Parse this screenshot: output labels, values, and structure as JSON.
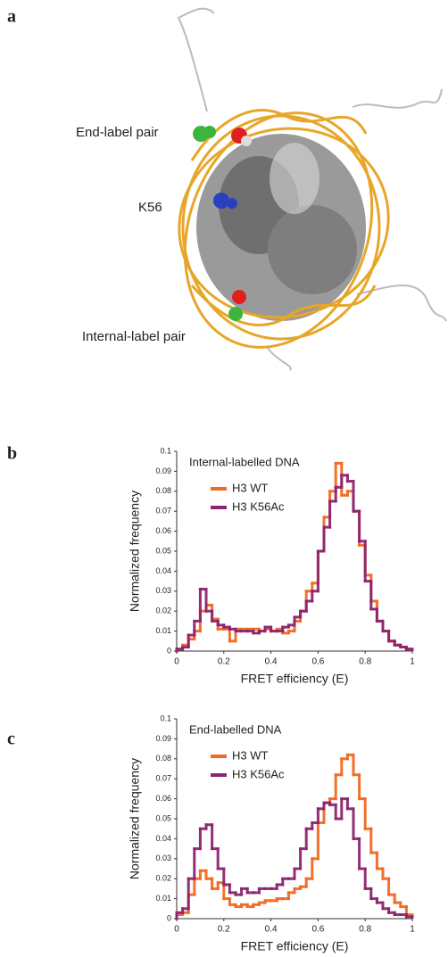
{
  "figure": {
    "panel_labels": [
      "a",
      "b",
      "c"
    ],
    "structure_labels": [
      "End-label pair",
      "K56",
      "Internal-label pair"
    ]
  },
  "chart_data": [
    {
      "type": "histogram",
      "title": "Internal-labelled DNA",
      "x_label": "FRET efficiency (E)",
      "y_label": "Normalized frequency",
      "bins": [
        0,
        0.025,
        0.05,
        0.075,
        0.1,
        0.125,
        0.15,
        0.175,
        0.2,
        0.225,
        0.25,
        0.275,
        0.3,
        0.325,
        0.35,
        0.375,
        0.4,
        0.425,
        0.45,
        0.475,
        0.5,
        0.525,
        0.55,
        0.575,
        0.6,
        0.625,
        0.65,
        0.675,
        0.7,
        0.725,
        0.75,
        0.775,
        0.8,
        0.825,
        0.85,
        0.875,
        0.9,
        0.925,
        0.95,
        0.975,
        1
      ],
      "series": [
        {
          "name": "H3 WT",
          "color": "#f26a21",
          "values": [
            0.001,
            0.003,
            0.006,
            0.01,
            0.02,
            0.023,
            0.016,
            0.011,
            0.011,
            0.005,
            0.011,
            0.011,
            0.011,
            0.011,
            0.01,
            0.011,
            0.01,
            0.011,
            0.009,
            0.01,
            0.015,
            0.02,
            0.03,
            0.034,
            0.05,
            0.067,
            0.08,
            0.094,
            0.078,
            0.08,
            0.07,
            0.053,
            0.038,
            0.025,
            0.015,
            0.01,
            0.005,
            0.003,
            0.002,
            0.001
          ]
        },
        {
          "name": "H3 K56Ac",
          "color": "#8e2470",
          "values": [
            0.001,
            0.002,
            0.008,
            0.015,
            0.031,
            0.02,
            0.015,
            0.013,
            0.012,
            0.011,
            0.01,
            0.01,
            0.01,
            0.009,
            0.01,
            0.012,
            0.01,
            0.01,
            0.012,
            0.013,
            0.017,
            0.02,
            0.025,
            0.03,
            0.05,
            0.062,
            0.075,
            0.082,
            0.088,
            0.085,
            0.07,
            0.055,
            0.035,
            0.021,
            0.015,
            0.01,
            0.005,
            0.003,
            0.002,
            0.001
          ]
        }
      ],
      "xlim": [
        0,
        1
      ],
      "xticks": [
        0,
        0.2,
        0.4,
        0.6,
        0.8,
        1
      ],
      "ylim": [
        0,
        0.1
      ],
      "yticks": [
        0,
        0.01,
        0.02,
        0.03,
        0.04,
        0.05,
        0.06,
        0.07,
        0.08,
        0.09,
        0.1
      ]
    },
    {
      "type": "histogram",
      "title": "End-labelled DNA",
      "x_label": "FRET efficiency (E)",
      "y_label": "Normalized frequency",
      "bins": [
        0,
        0.025,
        0.05,
        0.075,
        0.1,
        0.125,
        0.15,
        0.175,
        0.2,
        0.225,
        0.25,
        0.275,
        0.3,
        0.325,
        0.35,
        0.375,
        0.4,
        0.425,
        0.45,
        0.475,
        0.5,
        0.525,
        0.55,
        0.575,
        0.6,
        0.625,
        0.65,
        0.675,
        0.7,
        0.725,
        0.75,
        0.775,
        0.8,
        0.825,
        0.85,
        0.875,
        0.9,
        0.925,
        0.95,
        0.975,
        1
      ],
      "series": [
        {
          "name": "H3 WT",
          "color": "#f26a21",
          "values": [
            0.002,
            0.003,
            0.012,
            0.02,
            0.024,
            0.02,
            0.015,
            0.018,
            0.01,
            0.007,
            0.006,
            0.007,
            0.006,
            0.007,
            0.008,
            0.009,
            0.009,
            0.01,
            0.01,
            0.013,
            0.015,
            0.016,
            0.02,
            0.03,
            0.048,
            0.058,
            0.06,
            0.072,
            0.08,
            0.082,
            0.072,
            0.06,
            0.045,
            0.033,
            0.025,
            0.02,
            0.012,
            0.008,
            0.006,
            0.002
          ]
        },
        {
          "name": "H3 K56Ac",
          "color": "#8e2470",
          "values": [
            0.003,
            0.005,
            0.02,
            0.035,
            0.045,
            0.047,
            0.035,
            0.025,
            0.017,
            0.013,
            0.012,
            0.015,
            0.013,
            0.013,
            0.015,
            0.015,
            0.015,
            0.017,
            0.02,
            0.02,
            0.025,
            0.035,
            0.045,
            0.048,
            0.055,
            0.058,
            0.057,
            0.05,
            0.06,
            0.055,
            0.04,
            0.025,
            0.015,
            0.01,
            0.008,
            0.005,
            0.003,
            0.002,
            0.002,
            0.001
          ]
        }
      ],
      "xlim": [
        0,
        1
      ],
      "xticks": [
        0,
        0.2,
        0.4,
        0.6,
        0.8,
        1
      ],
      "ylim": [
        0,
        0.1
      ],
      "yticks": [
        0,
        0.01,
        0.02,
        0.03,
        0.04,
        0.05,
        0.06,
        0.07,
        0.08,
        0.09,
        0.1
      ]
    }
  ]
}
